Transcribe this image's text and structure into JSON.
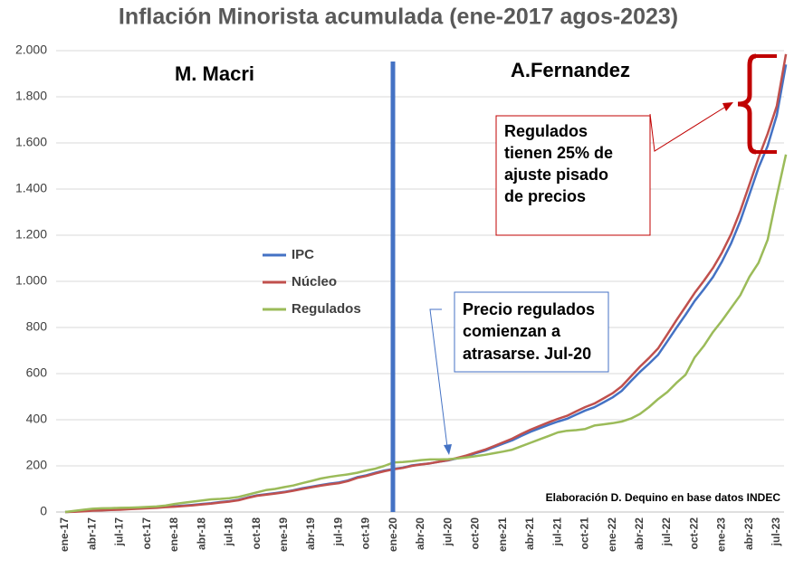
{
  "chart_data": {
    "type": "line",
    "title": "Inflación Minorista acumulada (ene-2017 agos-2023)",
    "categories": [
      "ene-17",
      null,
      null,
      "abr-17",
      null,
      null,
      "jul-17",
      null,
      null,
      "oct-17",
      null,
      null,
      "ene-18",
      null,
      null,
      "abr-18",
      null,
      null,
      "jul-18",
      null,
      null,
      "oct-18",
      null,
      null,
      "ene-19",
      null,
      null,
      "abr-19",
      null,
      null,
      "jul-19",
      null,
      null,
      "oct-19",
      null,
      null,
      "ene-20",
      null,
      null,
      "abr-20",
      null,
      null,
      "jul-20",
      null,
      null,
      "oct-20",
      null,
      null,
      "ene-21",
      null,
      null,
      "abr-21",
      null,
      null,
      "jul-21",
      null,
      null,
      "oct-21",
      null,
      null,
      "ene-22",
      null,
      null,
      "abr-22",
      null,
      null,
      "jul-22",
      null,
      null,
      "oct-22",
      null,
      null,
      "ene-23",
      null,
      null,
      "abr-23",
      null,
      null,
      "jul-23",
      null
    ],
    "series": [
      {
        "name": "IPC",
        "color": "#4472c4",
        "values": [
          0,
          2,
          5,
          8,
          9,
          11,
          12,
          14,
          16,
          18,
          20,
          23,
          25,
          28,
          31,
          35,
          38,
          43,
          47,
          53,
          63,
          72,
          77,
          82,
          87,
          94,
          103,
          110,
          117,
          123,
          128,
          137,
          151,
          159,
          170,
          180,
          187,
          192,
          202,
          207,
          211,
          218,
          224,
          233,
          242,
          255,
          266,
          281,
          296,
          311,
          330,
          348,
          363,
          378,
          392,
          404,
          422,
          440,
          454,
          475,
          497,
          525,
          567,
          607,
          643,
          682,
          740,
          799,
          855,
          915,
          965,
          1019,
          1086,
          1165,
          1262,
          1377,
          1492,
          1587,
          1720,
          1940
        ]
      },
      {
        "name": "Núcleo",
        "color": "#c0504d",
        "values": [
          0,
          1,
          3,
          6,
          7,
          9,
          10,
          12,
          14,
          16,
          18,
          21,
          23,
          26,
          29,
          33,
          36,
          41,
          45,
          51,
          61,
          70,
          75,
          80,
          85,
          92,
          100,
          107,
          114,
          120,
          125,
          134,
          148,
          156,
          167,
          177,
          185,
          191,
          200,
          206,
          211,
          218,
          225,
          235,
          245,
          258,
          270,
          286,
          302,
          318,
          338,
          357,
          373,
          389,
          404,
          417,
          436,
          455,
          470,
          492,
          515,
          545,
          588,
          630,
          668,
          710,
          770,
          832,
          890,
          950,
          1002,
          1058,
          1125,
          1205,
          1305,
          1420,
          1535,
          1640,
          1760,
          1985
        ]
      },
      {
        "name": "Regulados",
        "color": "#9bbb59",
        "values": [
          0,
          5,
          10,
          14,
          16,
          17,
          18,
          19,
          20,
          22,
          24,
          28,
          35,
          40,
          45,
          50,
          55,
          57,
          60,
          65,
          75,
          85,
          95,
          100,
          108,
          115,
          125,
          135,
          145,
          152,
          158,
          163,
          170,
          180,
          188,
          200,
          215,
          217,
          220,
          225,
          228,
          228,
          229,
          232,
          237,
          242,
          248,
          255,
          262,
          270,
          285,
          300,
          315,
          330,
          345,
          352,
          355,
          360,
          375,
          380,
          385,
          392,
          405,
          425,
          455,
          490,
          520,
          560,
          595,
          670,
          720,
          780,
          830,
          885,
          940,
          1020,
          1080,
          1180,
          1370,
          1550
        ]
      }
    ],
    "ylim": [
      0,
      2000
    ],
    "yticks": [
      0,
      200,
      400,
      600,
      800,
      {
        "value": 1000,
        "label": "1.000"
      },
      {
        "value": 1200,
        "label": "1.200"
      },
      {
        "value": 1400,
        "label": "1.400"
      },
      {
        "value": 1600,
        "label": "1.600"
      },
      {
        "value": 1800,
        "label": "1.800"
      },
      {
        "value": 2000,
        "label": "2.000"
      }
    ],
    "grid": true,
    "annotations": {
      "macri": "M. Macri",
      "fernandez": "A.Fernandez",
      "box_regulados": [
        "Regulados",
        "tienen 25% de",
        "ajuste pisado",
        "de precios"
      ],
      "box_atraso": [
        "Precio regulados",
        "comienzan a",
        "atrasarse. Jul-20"
      ],
      "source": "Elaboración D. Dequino en base datos INDEC"
    }
  }
}
